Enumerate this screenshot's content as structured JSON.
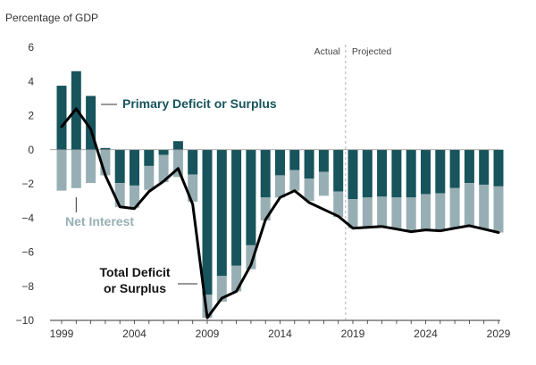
{
  "chart_data": {
    "type": "bar",
    "ylabel": "Percentage of GDP",
    "ylim": [
      -10,
      6
    ],
    "yticks": [
      6,
      4,
      2,
      0,
      -2,
      -4,
      -6,
      -8,
      -10
    ],
    "x": [
      1999,
      2000,
      2001,
      2002,
      2003,
      2004,
      2005,
      2006,
      2007,
      2008,
      2009,
      2010,
      2011,
      2012,
      2013,
      2014,
      2015,
      2016,
      2017,
      2018,
      2019,
      2020,
      2021,
      2022,
      2023,
      2024,
      2025,
      2026,
      2027,
      2028,
      2029
    ],
    "xticks": [
      "1999",
      "2004",
      "2009",
      "2014",
      "2019",
      "2024",
      "2029"
    ],
    "series": [
      {
        "name": "Primary Deficit or Surplus",
        "values": [
          3.75,
          4.6,
          3.15,
          0.1,
          -1.95,
          -2.1,
          -0.95,
          -0.3,
          0.5,
          -1.45,
          -8.5,
          -7.4,
          -6.8,
          -5.6,
          -2.8,
          -1.5,
          -1.2,
          -1.7,
          -1.3,
          -2.45,
          -2.9,
          -2.8,
          -2.75,
          -2.8,
          -2.8,
          -2.6,
          -2.55,
          -2.25,
          -1.95,
          -2.05,
          -2.15
        ]
      },
      {
        "name": "Net Interest",
        "values": [
          -2.4,
          -2.25,
          -1.95,
          -1.5,
          -1.4,
          -1.3,
          -1.4,
          -1.6,
          -1.6,
          -1.6,
          -1.35,
          -1.5,
          -1.5,
          -1.4,
          -1.35,
          -1.3,
          -1.2,
          -1.3,
          -1.4,
          -1.5,
          -1.7,
          -1.7,
          -1.8,
          -1.85,
          -2.0,
          -2.1,
          -2.2,
          -2.35,
          -2.5,
          -2.6,
          -2.7
        ]
      },
      {
        "name": "Total Deficit or Surplus",
        "type": "line",
        "values": [
          1.35,
          2.4,
          1.2,
          -1.5,
          -3.35,
          -3.45,
          -2.45,
          -1.85,
          -1.1,
          -3.2,
          -9.85,
          -8.7,
          -8.3,
          -6.75,
          -4.1,
          -2.8,
          -2.4,
          -3.1,
          -3.5,
          -3.9,
          -4.6,
          -4.55,
          -4.5,
          -4.65,
          -4.8,
          -4.7,
          -4.75,
          -4.6,
          -4.45,
          -4.65,
          -4.85
        ]
      }
    ],
    "divider_label_left": "Actual",
    "divider_label_right": "Projected",
    "annotations": {
      "primary": "Primary Deficit or Surplus",
      "net_interest": "Net Interest",
      "total_line1": "Total Deficit",
      "total_line2": "or Surplus"
    },
    "colors": {
      "primary": "#17545c",
      "net_interest": "#97afb4",
      "line": "#000000",
      "axis": "#333333"
    }
  }
}
